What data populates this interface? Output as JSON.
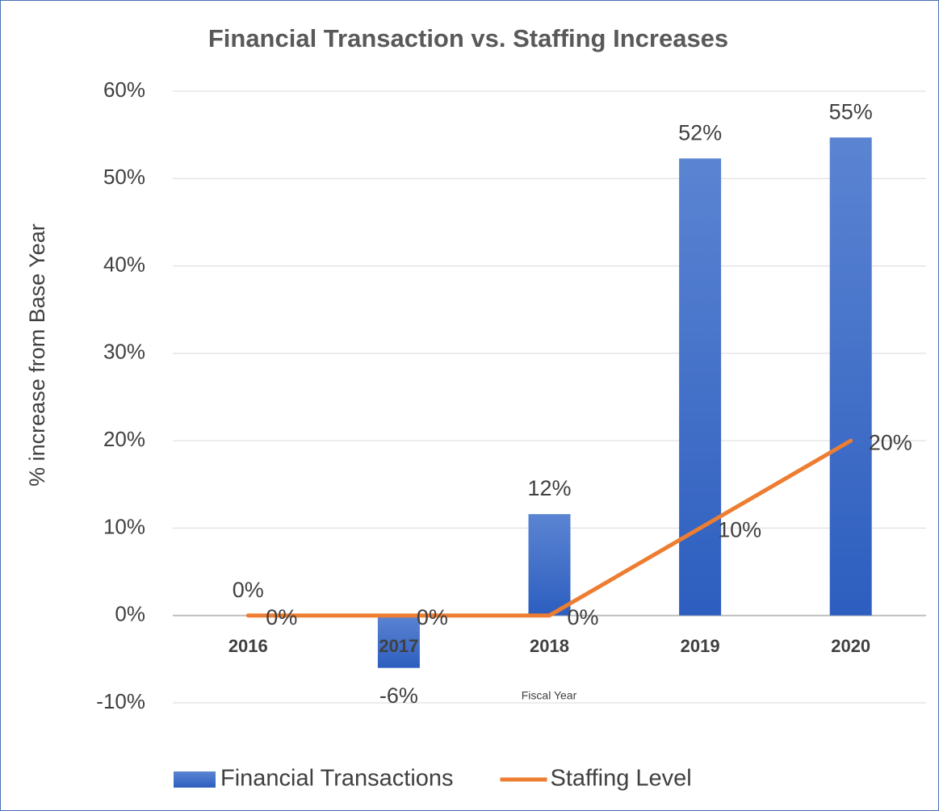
{
  "chart_data": {
    "type": "bar",
    "title": "Financial Transaction vs. Staffing Increases",
    "x_label": "Fiscal Year",
    "y_label": "% increase from Base Year",
    "categories": [
      "2016",
      "2017",
      "2018",
      "2019",
      "2020"
    ],
    "series": [
      {
        "name": "Financial Transactions",
        "type": "bar",
        "color": "#4472c4",
        "values": [
          0,
          -6,
          11.6,
          52.3,
          54.7
        ],
        "value_labels": [
          "0%",
          "-6%",
          "12%",
          "52%",
          "55%"
        ]
      },
      {
        "name": "Staffing Level",
        "type": "line",
        "color": "#ed7d31",
        "values": [
          0,
          0,
          0,
          10,
          20
        ],
        "value_labels": [
          "0%",
          "0%",
          "0%",
          "10%",
          "20%"
        ]
      }
    ],
    "ylim": [
      -10,
      60
    ],
    "yticks": [
      {
        "value": -10,
        "label": "-10%"
      },
      {
        "value": 0,
        "label": "0%"
      },
      {
        "value": 10,
        "label": "10%"
      },
      {
        "value": 20,
        "label": "20%"
      },
      {
        "value": 30,
        "label": "30%"
      },
      {
        "value": 40,
        "label": "40%"
      },
      {
        "value": 50,
        "label": "50%"
      },
      {
        "value": 60,
        "label": "60%"
      }
    ],
    "grid": true,
    "legend": "bottom"
  }
}
